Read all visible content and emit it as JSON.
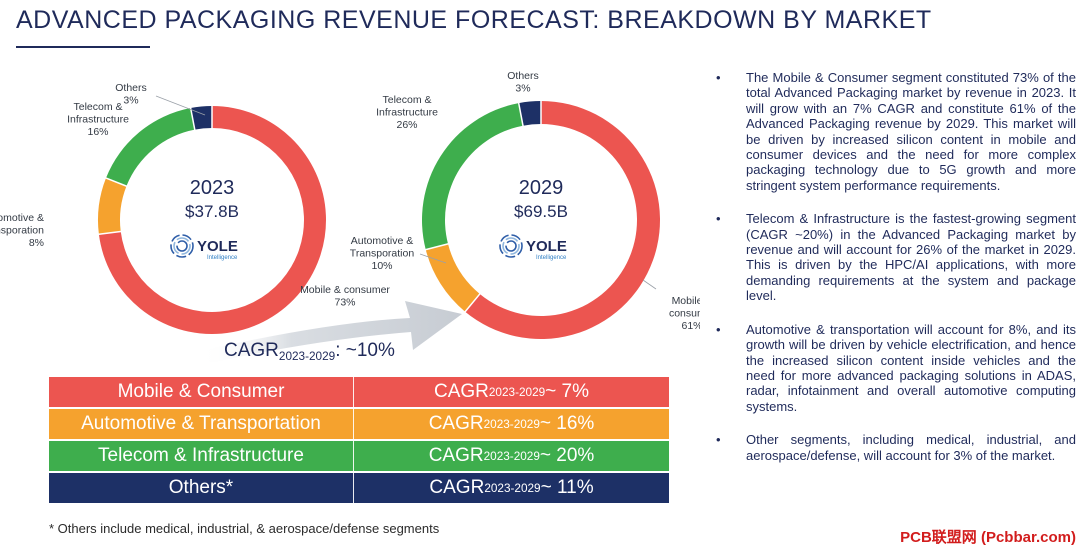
{
  "page": {
    "title": "ADVANCED PACKAGING REVENUE FORECAST: BREAKDOWN BY MARKET",
    "footnote": "* Others include medical, industrial, & aerospace/defense segments",
    "watermark": "PCB联盟网 (Pcbbar.com)"
  },
  "colors": {
    "mobile": "#ec5550",
    "automotive": "#f5a22e",
    "telecom": "#3eae4d",
    "others": "#1d3066",
    "navy": "#1f2a5a",
    "arrow": "#d9dde2"
  },
  "chart_data": [
    {
      "type": "pie",
      "variant": "donut",
      "year": "2023",
      "total": "$37.8B",
      "logo": "YOLE",
      "logo_sub": "Intelligence",
      "slices": [
        {
          "key": "mobile",
          "label": [
            "Mobile & consumer"
          ],
          "pct_label": "73%",
          "value": 73
        },
        {
          "key": "automotive",
          "label": [
            "Automotive &",
            "Transporation"
          ],
          "pct_label": "8%",
          "value": 8
        },
        {
          "key": "telecom",
          "label": [
            "Telecom &",
            "Infrastructure"
          ],
          "pct_label": "16%",
          "value": 16
        },
        {
          "key": "others",
          "label": [
            "Others"
          ],
          "pct_label": "3%",
          "value": 3
        }
      ]
    },
    {
      "type": "pie",
      "variant": "donut",
      "year": "2029",
      "total": "$69.5B",
      "logo": "YOLE",
      "logo_sub": "Intelligence",
      "slices": [
        {
          "key": "mobile",
          "label": [
            "Mobile &",
            "consumer"
          ],
          "pct_label": "61%",
          "value": 61
        },
        {
          "key": "automotive",
          "label": [
            "Automotive &",
            "Transporation"
          ],
          "pct_label": "10%",
          "value": 10
        },
        {
          "key": "telecom",
          "label": [
            "Telecom &",
            "Infrastructure"
          ],
          "pct_label": "26%",
          "value": 26
        },
        {
          "key": "others",
          "label": [
            "Others"
          ],
          "pct_label": "3%",
          "value": 3
        }
      ]
    }
  ],
  "cagr_overall": {
    "prefix": "CAGR",
    "sub": "2023-2029",
    "suffix": ": ~10%"
  },
  "table": [
    {
      "name": "Mobile & Consumer",
      "color": "#ec5550",
      "cagr_prefix": "CAGR",
      "cagr_sub": "2023-2029",
      "cagr_suffix": " ~ 7%"
    },
    {
      "name": "Automotive & Transportation",
      "color": "#f5a22e",
      "cagr_prefix": "CAGR",
      "cagr_sub": "2023-2029",
      "cagr_suffix": " ~ 16%"
    },
    {
      "name": "Telecom & Infrastructure",
      "color": "#3eae4d",
      "cagr_prefix": "CAGR",
      "cagr_sub": "2023-2029",
      "cagr_suffix": " ~ 20%"
    },
    {
      "name": "Others*",
      "color": "#1d3066",
      "cagr_prefix": "CAGR",
      "cagr_sub": "2023-2029",
      "cagr_suffix": " ~ 11%"
    }
  ],
  "bullets": [
    "The Mobile & Consumer segment constituted 73% of the total Advanced Packaging market by revenue in 2023.  It will grow with an 7% CAGR and constitute 61% of the Advanced Packaging revenue by 2029. This market will be driven by increased silicon content in mobile and consumer devices and the need for more complex packaging technology due to 5G growth and more stringent system performance requirements.",
    "Telecom & Infrastructure is the fastest-growing segment (CAGR ~20%) in the Advanced Packaging market by revenue and will account for 26% of the market in 2029. This is driven by the HPC/AI applications, with more demanding requirements at the system and package level.",
    "Automotive & transportation will account for 8%, and its growth will be driven by vehicle electrification, and hence the increased silicon content inside vehicles and the need for more advanced packaging solutions in ADAS, radar, infotainment and overall automotive computing systems.",
    "Other segments, including medical, industrial, and aerospace/defense, will account for 3% of the market."
  ]
}
